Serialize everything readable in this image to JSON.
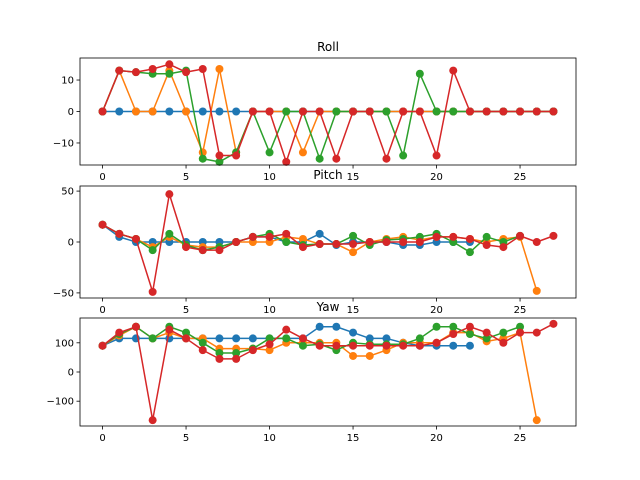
{
  "chart_data": [
    {
      "type": "line",
      "title": "Roll",
      "xlabel": "",
      "ylabel": "",
      "xlim": [
        -1.35,
        28.35
      ],
      "ylim": [
        -17,
        17
      ],
      "xticks": [
        0,
        5,
        10,
        15,
        20,
        25
      ],
      "yticks": [
        -10,
        0,
        10
      ],
      "x": [
        0,
        1,
        2,
        3,
        4,
        5,
        6,
        7,
        8,
        9,
        10,
        11,
        12,
        13,
        14,
        15,
        16,
        17,
        18,
        19,
        20,
        21,
        22,
        23,
        24,
        25,
        26,
        27
      ],
      "series": [
        {
          "color": "#1f77b4",
          "values": [
            0,
            0,
            0,
            0,
            0,
            0,
            0,
            0,
            0,
            0,
            0,
            0,
            0,
            0,
            0,
            0,
            0,
            0,
            0,
            0,
            0,
            0,
            0,
            0,
            0,
            0,
            0,
            0
          ]
        },
        {
          "color": "#ff7f0e",
          "values": [
            0,
            13,
            0,
            0,
            13,
            0,
            -13,
            13.5,
            -13,
            0,
            0,
            0,
            -13,
            0,
            0,
            0,
            0,
            0,
            0,
            0,
            0,
            0,
            0,
            0,
            0,
            0,
            0,
            0
          ]
        },
        {
          "color": "#2ca02c",
          "values": [
            0,
            13,
            12.5,
            12,
            12,
            13,
            -15,
            -16,
            -13,
            0,
            -13,
            0,
            0,
            -15,
            0,
            0,
            0,
            0,
            -14,
            12,
            0,
            0,
            0,
            0,
            0,
            0,
            0,
            0
          ]
        },
        {
          "color": "#d62728",
          "values": [
            0,
            13,
            12.5,
            13.5,
            15,
            12.5,
            13.5,
            -14,
            -14,
            0,
            0,
            -16,
            0,
            0,
            -15,
            0,
            0,
            -15,
            0,
            0,
            -14,
            13,
            0,
            0,
            0,
            0,
            0,
            0
          ]
        }
      ]
    },
    {
      "type": "line",
      "title": "Pitch",
      "xlabel": "",
      "ylabel": "",
      "xlim": [
        -1.35,
        28.35
      ],
      "ylim": [
        -55,
        55
      ],
      "xticks": [
        0,
        5,
        10,
        15,
        20,
        25
      ],
      "yticks": [
        -50,
        0,
        50
      ],
      "x": [
        0,
        1,
        2,
        3,
        4,
        5,
        6,
        7,
        8,
        9,
        10,
        11,
        12,
        13,
        14,
        15,
        16,
        17,
        18,
        19,
        20,
        21,
        22,
        23,
        24,
        25,
        26,
        27
      ],
      "series": [
        {
          "color": "#1f77b4",
          "values": [
            17,
            5,
            0,
            0,
            0,
            0,
            0,
            0,
            0,
            5,
            5,
            0,
            0,
            8,
            -3,
            0,
            0,
            0,
            -3,
            -3,
            0,
            0,
            0,
            null,
            null,
            null,
            null,
            null
          ]
        },
        {
          "color": "#ff7f0e",
          "values": [
            17,
            8,
            3,
            -5,
            5,
            -3,
            -5,
            -5,
            0,
            0,
            0,
            5,
            3,
            -2,
            -2,
            -10,
            0,
            3,
            5,
            2,
            5,
            5,
            3,
            0,
            3,
            5,
            -48,
            null
          ]
        },
        {
          "color": "#2ca02c",
          "values": [
            17,
            8,
            3,
            -8,
            8,
            -3,
            -8,
            -5,
            0,
            5,
            8,
            0,
            -3,
            -2,
            -2,
            6,
            -3,
            2,
            3,
            5,
            8,
            0,
            -10,
            5,
            0,
            6,
            null,
            null
          ]
        },
        {
          "color": "#d62728",
          "values": [
            17,
            8,
            3,
            -49,
            47,
            -5,
            -8,
            -8,
            0,
            5,
            5,
            8,
            -5,
            -2,
            -2,
            -2,
            0,
            0,
            0,
            0,
            5,
            5,
            3,
            -3,
            -5,
            6,
            0,
            6
          ]
        }
      ]
    },
    {
      "type": "line",
      "title": "Yaw",
      "xlabel": "",
      "ylabel": "",
      "xlim": [
        -1.35,
        28.35
      ],
      "ylim": [
        -185,
        185
      ],
      "xticks": [
        0,
        5,
        10,
        15,
        20,
        25
      ],
      "yticks": [
        -100,
        0,
        100
      ],
      "x": [
        0,
        1,
        2,
        3,
        4,
        5,
        6,
        7,
        8,
        9,
        10,
        11,
        12,
        13,
        14,
        15,
        16,
        17,
        18,
        19,
        20,
        21,
        22,
        23,
        24,
        25,
        26,
        27
      ],
      "series": [
        {
          "color": "#1f77b4",
          "values": [
            90,
            115,
            115,
            115,
            115,
            115,
            115,
            115,
            115,
            115,
            115,
            115,
            115,
            155,
            155,
            135,
            115,
            115,
            100,
            90,
            90,
            90,
            90,
            null,
            null,
            null,
            null,
            null
          ]
        },
        {
          "color": "#ff7f0e",
          "values": [
            90,
            125,
            155,
            115,
            135,
            115,
            115,
            80,
            80,
            80,
            75,
            100,
            100,
            100,
            100,
            55,
            55,
            75,
            100,
            100,
            100,
            135,
            135,
            105,
            115,
            135,
            -165,
            null
          ]
        },
        {
          "color": "#2ca02c",
          "values": [
            90,
            130,
            155,
            115,
            155,
            135,
            100,
            65,
            65,
            80,
            115,
            115,
            90,
            95,
            75,
            100,
            95,
            95,
            95,
            115,
            155,
            155,
            130,
            115,
            135,
            155,
            null,
            null
          ]
        },
        {
          "color": "#d62728",
          "values": [
            90,
            135,
            155,
            -165,
            145,
            115,
            75,
            45,
            45,
            75,
            95,
            145,
            115,
            90,
            90,
            90,
            90,
            90,
            90,
            90,
            100,
            130,
            155,
            135,
            100,
            135,
            135,
            165
          ]
        }
      ]
    }
  ]
}
